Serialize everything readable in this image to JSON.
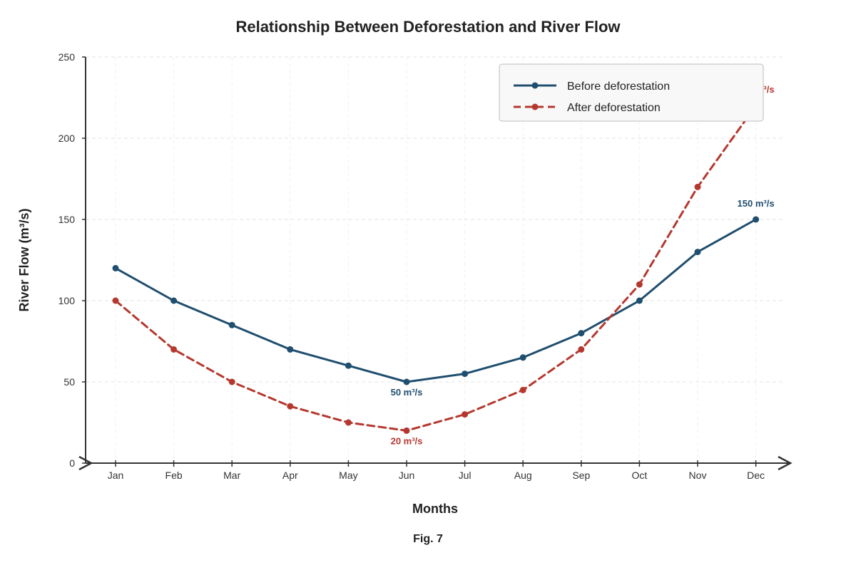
{
  "chart_data": {
    "type": "line",
    "title": "Relationship Between Deforestation and River Flow",
    "xlabel": "Months",
    "ylabel": "River Flow (m³/s)",
    "caption": "Fig. 7",
    "categories": [
      "Jan",
      "Feb",
      "Mar",
      "Apr",
      "May",
      "Jun",
      "Jul",
      "Aug",
      "Sep",
      "Oct",
      "Nov",
      "Dec"
    ],
    "ylim": [
      0,
      250
    ],
    "yticks": [
      0,
      50,
      100,
      150,
      200,
      250
    ],
    "grid": true,
    "legend_position": "top-right",
    "series": [
      {
        "name": "Before deforestation",
        "color": "#1f4e6e",
        "style": "solid",
        "values": [
          120,
          100,
          85,
          70,
          60,
          50,
          55,
          65,
          80,
          100,
          130,
          150
        ]
      },
      {
        "name": "After deforestation",
        "color": "#b5382f",
        "style": "dashed",
        "values": [
          100,
          70,
          50,
          35,
          25,
          20,
          30,
          45,
          70,
          110,
          170,
          220
        ]
      }
    ],
    "annotations": [
      {
        "series": 0,
        "category": "Jun",
        "text": "50 m³/s"
      },
      {
        "series": 0,
        "category": "Dec",
        "text": "150 m³/s"
      },
      {
        "series": 1,
        "category": "Jun",
        "text": "20 m³/s"
      },
      {
        "series": 1,
        "category": "Dec",
        "text": "220 m³/s"
      }
    ]
  }
}
